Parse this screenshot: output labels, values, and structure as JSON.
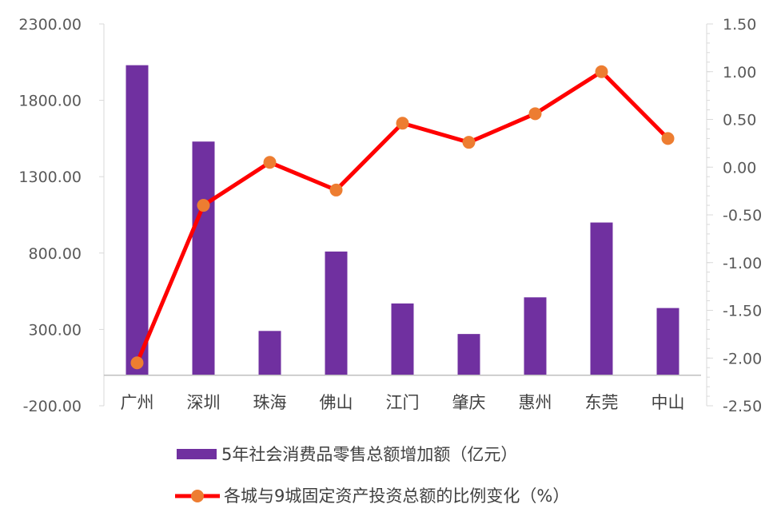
{
  "chart_data": {
    "type": "bar",
    "categories": [
      "广州",
      "深圳",
      "珠海",
      "佛山",
      "江门",
      "肇庆",
      "惠州",
      "东莞",
      "中山"
    ],
    "series": [
      {
        "name": "5年社会消费品零售总额增加额（亿元）",
        "type": "bar",
        "axis": "left",
        "color": "#7030A0",
        "values": [
          2030,
          1530,
          290,
          810,
          470,
          270,
          510,
          1000,
          440
        ]
      },
      {
        "name": "各城与9城固定资产投资总额的比例变化（%）",
        "type": "line",
        "axis": "right",
        "color": "#FF0000",
        "marker_color": "#ED7D31",
        "values": [
          -2.05,
          -0.4,
          0.05,
          -0.24,
          0.46,
          0.26,
          0.56,
          1.0,
          0.3
        ]
      }
    ],
    "y_left": {
      "ylim": [
        -200,
        2300
      ],
      "ticks": [
        -200,
        300,
        800,
        1300,
        1800,
        2300
      ],
      "tick_labels": [
        "-200.00",
        "300.00",
        "800.00",
        "1300.00",
        "1800.00",
        "2300.00"
      ]
    },
    "y_right": {
      "ylim": [
        -2.5,
        1.5
      ],
      "ticks": [
        -2.5,
        -2.0,
        -1.5,
        -1.0,
        -0.5,
        0.0,
        0.5,
        1.0,
        1.5
      ],
      "tick_labels": [
        "-2.50",
        "-2.00",
        "-1.50",
        "-1.00",
        "-0.50",
        "0.00",
        "0.50",
        "1.00",
        "1.50"
      ]
    },
    "x_axis_at_left_value": 0,
    "grid": false,
    "legend_position": "bottom"
  }
}
